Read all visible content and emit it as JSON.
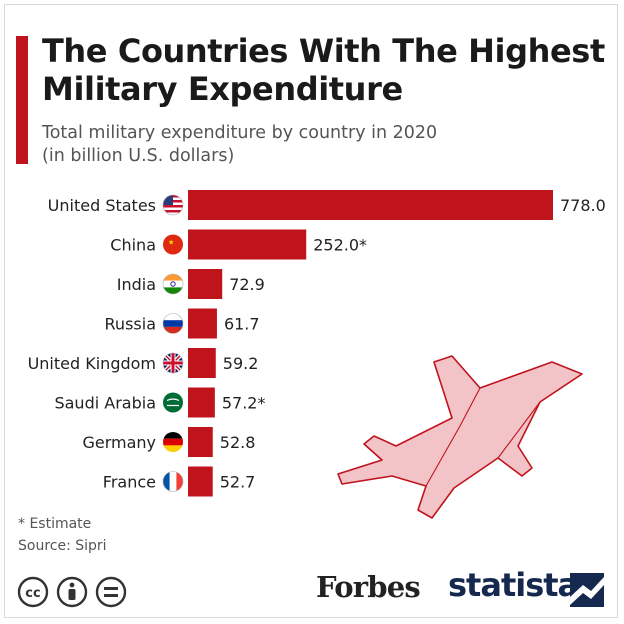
{
  "header": {
    "title": "The Countries With The Highest Military Expenditure",
    "subtitle_line1": "Total military expenditure by country in 2020",
    "subtitle_line2": "(in billion U.S. dollars)"
  },
  "chart_data": {
    "type": "bar",
    "orientation": "horizontal",
    "title": "The Countries With The Highest Military Expenditure",
    "subtitle": "Total military expenditure by country in 2020 (in billion U.S. dollars)",
    "categories": [
      "United States",
      "China",
      "India",
      "Russia",
      "United Kingdom",
      "Saudi Arabia",
      "Germany",
      "France"
    ],
    "values": [
      778.0,
      252.0,
      72.9,
      61.7,
      59.2,
      57.2,
      52.8,
      52.7
    ],
    "value_labels": [
      "778.0",
      "252.0*",
      "72.9",
      "61.7",
      "59.2",
      "57.2*",
      "52.8",
      "52.7"
    ],
    "bar_color": "#c0141c",
    "xlim": [
      0,
      778
    ],
    "grid": false,
    "legend": "none"
  },
  "flags": [
    "us-flag-icon",
    "china-flag-icon",
    "india-flag-icon",
    "russia-flag-icon",
    "uk-flag-icon",
    "saudi-flag-icon",
    "germany-flag-icon",
    "france-flag-icon"
  ],
  "footer": {
    "estimate_note": "* Estimate",
    "source": "Source: Sipri",
    "publisher": "Forbes",
    "brand": "statista"
  },
  "colors": {
    "accent": "#c0141c",
    "jet_fill": "#f2c4c8",
    "jet_stroke": "#c0141c",
    "brand_navy": "#15294f"
  }
}
